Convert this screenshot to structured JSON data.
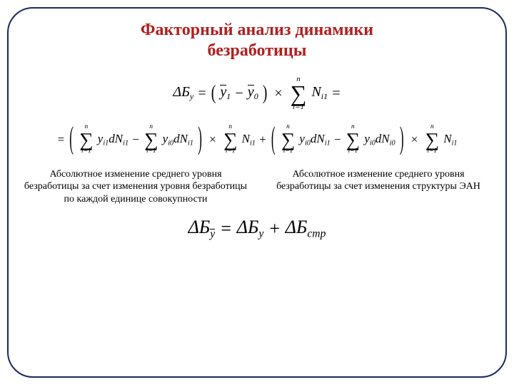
{
  "title": {
    "text_line1": "Факторный анализ динамики",
    "text_line2": "безработицы",
    "color": "#b02020",
    "fontsize": 24
  },
  "symbols": {
    "delta": "Δ",
    "B": "Б",
    "y": "y",
    "y_bar": "y",
    "N": "N",
    "d": "d",
    "str": "стр",
    "sigma": "∑",
    "times": "×",
    "eq": "=",
    "plus": "+",
    "minus": "−",
    "i": "i",
    "i_eq_1": "i=1",
    "n": "n",
    "one": "1",
    "zero": "0",
    "i1": "i1",
    "i0": "i0"
  },
  "equations": {
    "eq1_show": true,
    "eq2_show": true,
    "eq3_show": true
  },
  "explanations": {
    "left": "Абсолютное изменение среднего уровня безработицы за счет изменения уровня безработицы по каждой единице совокупности",
    "right": "Абсолютное изменение среднего уровня безработицы за счет изменения структуры ЭАН"
  },
  "style": {
    "border_color": "#1a2a5a",
    "border_radius": 36,
    "text_color": "#000000",
    "background": "#ffffff"
  }
}
